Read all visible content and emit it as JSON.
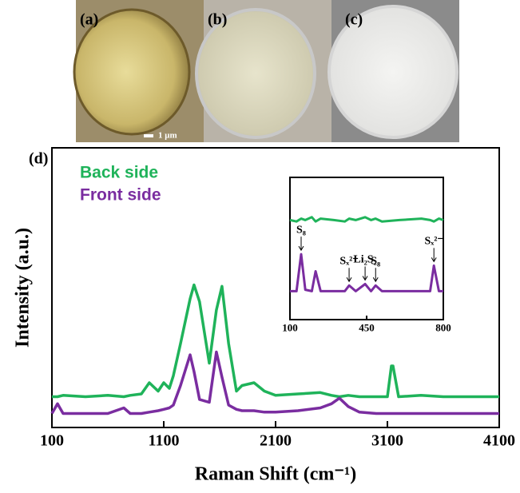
{
  "panels": [
    "(a)",
    "(b)",
    "(c)"
  ],
  "scale_bar": "1 μm",
  "chart_data": [
    {
      "type": "line",
      "panel_label": "(d)",
      "xlabel": "Raman Shift (cm⁻¹)",
      "ylabel": "Intensity (a.u.)",
      "xlim": [
        100,
        4100
      ],
      "xticks": [
        100,
        1100,
        2100,
        3100,
        4100
      ],
      "ylim": [
        0,
        100
      ],
      "x": [
        100,
        150,
        200,
        400,
        600,
        743,
        800,
        900,
        971,
        1050,
        1100,
        1150,
        1186,
        1250,
        1336,
        1371,
        1420,
        1507,
        1571,
        1621,
        1680,
        1750,
        1800,
        1907,
        2000,
        2100,
        2300,
        2500,
        2600,
        2671,
        2750,
        2850,
        3000,
        3100,
        3136,
        3150,
        3200,
        3400,
        3600,
        3800,
        4000,
        4100
      ],
      "series": [
        {
          "name": "Back side",
          "color": "#1fb35a",
          "values": [
            11,
            11,
            11.5,
            11,
            11.5,
            11,
            11.5,
            12,
            16,
            13,
            16,
            14,
            18.5,
            30,
            46,
            51,
            45,
            23,
            42,
            50.5,
            30,
            13,
            15,
            16,
            13,
            11.5,
            12,
            12.5,
            11.5,
            11,
            11.5,
            11,
            11,
            11,
            22,
            22,
            11,
            11.5,
            11,
            11,
            11,
            11
          ]
        },
        {
          "name": "Front side",
          "color": "#7a2da0",
          "values": [
            5,
            8.5,
            5,
            5,
            5,
            7,
            5,
            5,
            5.5,
            6,
            6.5,
            7,
            8,
            15,
            26,
            20,
            10,
            9,
            27,
            18,
            8,
            6.5,
            6,
            6,
            5.5,
            5.5,
            6,
            7,
            8.5,
            10.5,
            7.5,
            5.5,
            5,
            5,
            5,
            5,
            5,
            5,
            5,
            5,
            5,
            5
          ]
        }
      ]
    },
    {
      "type": "line",
      "xlim": [
        100,
        800
      ],
      "xticks": [
        100,
        450,
        800
      ],
      "ylim": [
        0,
        100
      ],
      "x": [
        100,
        130,
        151,
        170,
        200,
        217,
        240,
        300,
        350,
        370,
        400,
        443,
        470,
        491,
        520,
        600,
        700,
        740,
        757,
        780,
        800
      ],
      "series": [
        {
          "name": "Back side",
          "color": "#1fb35a",
          "values": [
            70,
            69,
            71,
            70,
            72,
            69,
            71,
            70,
            69,
            71,
            70,
            72,
            70,
            71,
            69,
            70,
            71,
            70,
            69,
            71,
            70
          ]
        },
        {
          "name": "Front side",
          "color": "#7a2da0",
          "values": [
            20,
            20,
            46,
            21,
            20,
            34,
            20,
            20,
            20,
            24,
            20,
            25,
            20,
            24,
            20,
            20,
            20,
            20,
            38,
            20,
            20
          ]
        }
      ],
      "annotations": [
        {
          "text": "S₈",
          "x": 151,
          "y": 46
        },
        {
          "text": "Sₓ²⁻",
          "x": 370,
          "y": 24
        },
        {
          "text": "Li₂S₂",
          "x": 443,
          "y": 25
        },
        {
          "text": "S₈",
          "x": 491,
          "y": 24
        },
        {
          "text": "Sₓ²⁻",
          "x": 757,
          "y": 38
        }
      ]
    }
  ]
}
